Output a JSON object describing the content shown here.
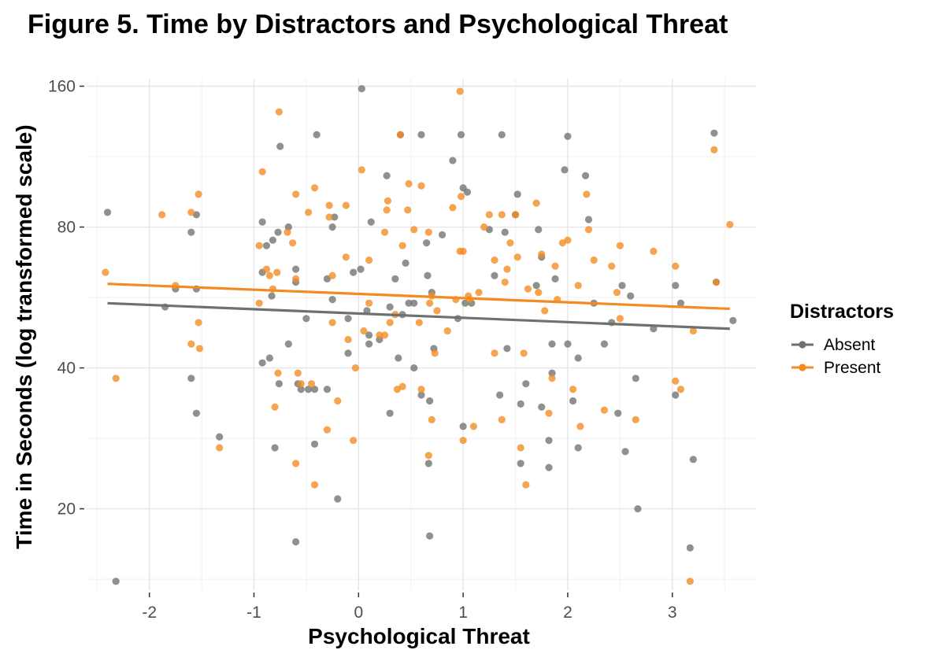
{
  "chart_data": {
    "type": "scatter",
    "title": "Figure 5. Time by Distractors and Psychological Threat",
    "xlabel": "Psychological Threat",
    "ylabel": "Time in Seconds (log transformed scale)",
    "y_scale": "log",
    "xlim": [
      -2.6,
      3.8
    ],
    "ylim": [
      13.4,
      166
    ],
    "x_ticks": [
      -2,
      -1,
      0,
      1,
      2,
      3
    ],
    "y_ticks": [
      20,
      40,
      80,
      160
    ],
    "grid": true,
    "legend": {
      "title": "Distractors",
      "position": "right"
    },
    "series": [
      {
        "name": "Absent",
        "color": "#6e726e",
        "trend": {
          "x": [
            -2.4,
            3.55
          ],
          "y": [
            55.0,
            48.5
          ]
        },
        "points": [
          [
            -2.4,
            86
          ],
          [
            -2.32,
            14
          ],
          [
            -1.85,
            54
          ],
          [
            -1.75,
            59
          ],
          [
            -1.6,
            78
          ],
          [
            -1.6,
            38
          ],
          [
            -1.55,
            85
          ],
          [
            -1.55,
            59
          ],
          [
            -1.55,
            32
          ],
          [
            -1.33,
            28.5
          ],
          [
            -0.92,
            82
          ],
          [
            -0.92,
            64
          ],
          [
            -0.92,
            41
          ],
          [
            -0.88,
            73
          ],
          [
            -0.85,
            42
          ],
          [
            -0.83,
            57
          ],
          [
            -0.82,
            75
          ],
          [
            -0.8,
            27
          ],
          [
            -0.77,
            78
          ],
          [
            -0.76,
            37
          ],
          [
            -0.75,
            119
          ],
          [
            -0.67,
            80
          ],
          [
            -0.67,
            45
          ],
          [
            -0.6,
            65
          ],
          [
            -0.6,
            61
          ],
          [
            -0.6,
            17
          ],
          [
            -0.58,
            37
          ],
          [
            -0.55,
            36
          ],
          [
            -0.5,
            51
          ],
          [
            -0.48,
            36
          ],
          [
            -0.42,
            36
          ],
          [
            -0.42,
            27.5
          ],
          [
            -0.4,
            126
          ],
          [
            -0.3,
            62
          ],
          [
            -0.3,
            36
          ],
          [
            -0.25,
            80
          ],
          [
            -0.25,
            56
          ],
          [
            -0.23,
            84
          ],
          [
            -0.2,
            21
          ],
          [
            -0.1,
            51
          ],
          [
            -0.1,
            43
          ],
          [
            -0.05,
            64
          ],
          [
            0.02,
            65
          ],
          [
            0.03,
            158
          ],
          [
            0.08,
            53
          ],
          [
            0.1,
            47
          ],
          [
            0.1,
            45
          ],
          [
            0.12,
            82
          ],
          [
            0.2,
            46
          ],
          [
            0.27,
            103
          ],
          [
            0.3,
            32
          ],
          [
            0.3,
            54
          ],
          [
            0.35,
            62
          ],
          [
            0.38,
            42
          ],
          [
            0.4,
            126
          ],
          [
            0.42,
            52
          ],
          [
            0.45,
            67
          ],
          [
            0.48,
            55
          ],
          [
            0.53,
            55
          ],
          [
            0.53,
            40
          ],
          [
            0.6,
            126
          ],
          [
            0.6,
            35
          ],
          [
            0.65,
            74
          ],
          [
            0.66,
            63
          ],
          [
            0.67,
            25
          ],
          [
            0.68,
            17.5
          ],
          [
            0.68,
            34
          ],
          [
            0.7,
            58
          ],
          [
            0.72,
            44
          ],
          [
            0.8,
            77
          ],
          [
            0.9,
            111
          ],
          [
            0.95,
            51
          ],
          [
            0.98,
            126
          ],
          [
            1.0,
            97
          ],
          [
            1.02,
            55
          ],
          [
            1.04,
            95
          ],
          [
            1.08,
            55
          ],
          [
            1.0,
            30
          ],
          [
            1.25,
            79
          ],
          [
            1.3,
            63
          ],
          [
            1.35,
            35
          ],
          [
            1.37,
            126
          ],
          [
            1.4,
            78
          ],
          [
            1.42,
            44
          ],
          [
            1.5,
            85
          ],
          [
            1.52,
            94
          ],
          [
            1.55,
            33.5
          ],
          [
            1.55,
            25
          ],
          [
            1.6,
            37
          ],
          [
            1.72,
            79
          ],
          [
            1.75,
            69
          ],
          [
            1.7,
            60
          ],
          [
            1.75,
            33
          ],
          [
            1.82,
            24.5
          ],
          [
            1.82,
            28
          ],
          [
            1.85,
            45
          ],
          [
            1.85,
            39
          ],
          [
            1.88,
            62
          ],
          [
            1.97,
            106
          ],
          [
            2.0,
            125
          ],
          [
            2.0,
            45
          ],
          [
            2.05,
            34
          ],
          [
            2.1,
            27
          ],
          [
            2.1,
            42
          ],
          [
            2.17,
            103
          ],
          [
            2.2,
            83
          ],
          [
            2.25,
            55
          ],
          [
            2.35,
            45
          ],
          [
            2.42,
            50
          ],
          [
            2.48,
            32
          ],
          [
            2.52,
            60
          ],
          [
            2.55,
            26.5
          ],
          [
            2.6,
            57
          ],
          [
            2.65,
            38
          ],
          [
            2.67,
            20
          ],
          [
            2.82,
            48.5
          ],
          [
            3.03,
            60
          ],
          [
            3.03,
            35
          ],
          [
            3.08,
            55
          ],
          [
            3.17,
            16.5
          ],
          [
            3.2,
            25.5
          ],
          [
            3.4,
            127
          ],
          [
            3.42,
            61
          ],
          [
            3.58,
            50.5
          ]
        ]
      },
      {
        "name": "Present",
        "color": "#f58a20",
        "trend": {
          "x": [
            -2.4,
            3.55
          ],
          "y": [
            60.5,
            53.5
          ]
        },
        "points": [
          [
            -2.42,
            64
          ],
          [
            -2.32,
            38
          ],
          [
            -1.88,
            85
          ],
          [
            -1.75,
            60
          ],
          [
            -1.6,
            86
          ],
          [
            -1.6,
            45
          ],
          [
            -1.53,
            94
          ],
          [
            -1.53,
            50
          ],
          [
            -1.52,
            44
          ],
          [
            -1.33,
            27
          ],
          [
            -0.95,
            73
          ],
          [
            -0.95,
            55
          ],
          [
            -0.92,
            105
          ],
          [
            -0.88,
            65
          ],
          [
            -0.85,
            63
          ],
          [
            -0.82,
            59
          ],
          [
            -0.8,
            33
          ],
          [
            -0.78,
            64
          ],
          [
            -0.77,
            39
          ],
          [
            -0.76,
            141
          ],
          [
            -0.68,
            78
          ],
          [
            -0.63,
            74
          ],
          [
            -0.6,
            94
          ],
          [
            -0.6,
            62
          ],
          [
            -0.6,
            25
          ],
          [
            -0.58,
            39
          ],
          [
            -0.55,
            37
          ],
          [
            -0.48,
            86
          ],
          [
            -0.45,
            37
          ],
          [
            -0.42,
            97
          ],
          [
            -0.42,
            22.5
          ],
          [
            -0.3,
            29.5
          ],
          [
            -0.28,
            89
          ],
          [
            -0.28,
            84
          ],
          [
            -0.25,
            63
          ],
          [
            -0.25,
            50
          ],
          [
            -0.2,
            34
          ],
          [
            -0.12,
            89
          ],
          [
            -0.12,
            69
          ],
          [
            -0.1,
            46
          ],
          [
            -0.05,
            28
          ],
          [
            -0.03,
            40
          ],
          [
            0.03,
            106
          ],
          [
            0.05,
            48
          ],
          [
            0.1,
            68
          ],
          [
            0.1,
            55
          ],
          [
            0.2,
            47
          ],
          [
            0.25,
            78
          ],
          [
            0.25,
            47
          ],
          [
            0.27,
            87
          ],
          [
            0.28,
            91
          ],
          [
            0.3,
            50
          ],
          [
            0.35,
            52
          ],
          [
            0.37,
            36
          ],
          [
            0.4,
            126
          ],
          [
            0.42,
            73
          ],
          [
            0.42,
            36.5
          ],
          [
            0.47,
            87
          ],
          [
            0.48,
            99
          ],
          [
            0.53,
            79
          ],
          [
            0.58,
            50
          ],
          [
            0.6,
            98
          ],
          [
            0.6,
            36
          ],
          [
            0.67,
            78
          ],
          [
            0.67,
            26
          ],
          [
            0.68,
            55
          ],
          [
            0.7,
            31
          ],
          [
            0.7,
            57
          ],
          [
            0.73,
            43
          ],
          [
            0.75,
            53
          ],
          [
            0.85,
            48
          ],
          [
            0.9,
            88
          ],
          [
            0.93,
            56
          ],
          [
            0.97,
            156
          ],
          [
            0.97,
            71
          ],
          [
            0.98,
            93
          ],
          [
            1.0,
            28
          ],
          [
            1.0,
            71
          ],
          [
            1.05,
            57
          ],
          [
            1.06,
            56
          ],
          [
            1.1,
            30
          ],
          [
            1.15,
            58
          ],
          [
            1.2,
            80
          ],
          [
            1.25,
            85
          ],
          [
            1.3,
            68
          ],
          [
            1.3,
            43
          ],
          [
            1.37,
            85
          ],
          [
            1.37,
            31
          ],
          [
            1.4,
            61
          ],
          [
            1.42,
            65
          ],
          [
            1.45,
            74
          ],
          [
            1.5,
            85
          ],
          [
            1.52,
            69
          ],
          [
            1.55,
            27
          ],
          [
            1.58,
            43
          ],
          [
            1.6,
            22.5
          ],
          [
            1.62,
            59
          ],
          [
            1.7,
            90
          ],
          [
            1.72,
            58
          ],
          [
            1.75,
            70
          ],
          [
            1.78,
            53
          ],
          [
            1.82,
            32
          ],
          [
            1.85,
            38
          ],
          [
            1.88,
            66
          ],
          [
            1.9,
            56
          ],
          [
            1.95,
            74
          ],
          [
            2.0,
            75
          ],
          [
            2.05,
            36
          ],
          [
            2.1,
            60
          ],
          [
            2.12,
            30
          ],
          [
            2.18,
            94
          ],
          [
            2.2,
            79
          ],
          [
            2.25,
            68
          ],
          [
            2.35,
            32.5
          ],
          [
            2.42,
            66
          ],
          [
            2.47,
            58
          ],
          [
            2.5,
            73
          ],
          [
            2.5,
            51
          ],
          [
            2.65,
            31
          ],
          [
            2.82,
            71
          ],
          [
            3.03,
            66
          ],
          [
            3.03,
            37.5
          ],
          [
            3.08,
            36
          ],
          [
            3.17,
            14
          ],
          [
            3.2,
            48
          ],
          [
            3.4,
            117
          ],
          [
            3.42,
            61
          ],
          [
            3.55,
            81
          ]
        ]
      }
    ]
  }
}
